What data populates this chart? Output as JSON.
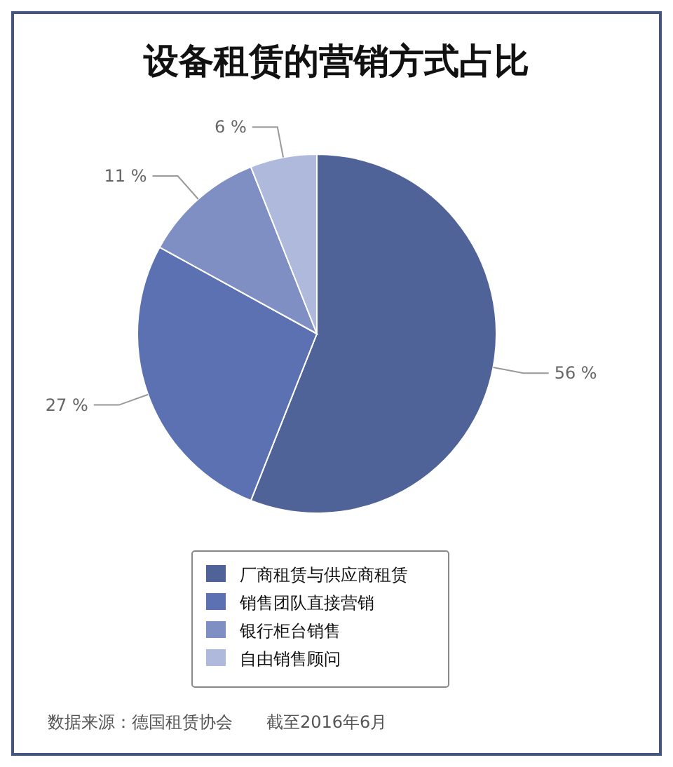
{
  "chart_data": {
    "type": "pie",
    "title": "设备租赁的营销方式占比",
    "categories": [
      "厂商租赁与供应商租赁",
      "销售团队直接营销",
      "银行柜台销售",
      "自由销售顾问"
    ],
    "values": [
      56,
      27,
      11,
      6
    ],
    "colors": [
      "#4f6399",
      "#5b71b2",
      "#7f8fc3",
      "#aeb9dc"
    ],
    "value_labels": [
      "56 %",
      "27 %",
      "11 %",
      "6 %"
    ],
    "legend": "bottom",
    "annotations": [
      "数据来源：德国租赁协会　　截至2016年6月"
    ]
  }
}
